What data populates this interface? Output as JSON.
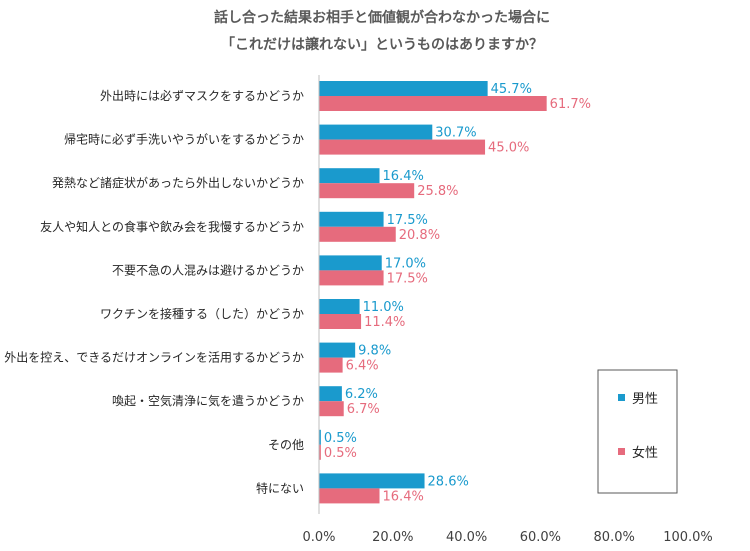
{
  "chart_data": {
    "type": "bar",
    "orientation": "horizontal",
    "title": [
      "話し合った結果お相手と価値観が合わなかった場合に",
      "「これだけは譲れない」というものはありますか？"
    ],
    "categories": [
      "外出時には必ずマスクをするかどうか",
      "帰宅時に必ず手洗いやうがいをするかどうか",
      "発熱など諸症状があったら外出しないかどうか",
      "友人や知人との食事や飲み会を我慢するかどうか",
      "不要不急の人混みは避けるかどうか",
      "ワクチンを接種する（した）かどうか",
      "外出を控え、できるだけオンラインを活用するかどうか",
      "喚起・空気清浄に気を遣うかどうか",
      "その他",
      "特にない"
    ],
    "series": [
      {
        "name": "男性",
        "color": "#1A9ACD",
        "values": [
          45.7,
          30.7,
          16.4,
          17.5,
          17.0,
          11.0,
          9.8,
          6.2,
          0.5,
          28.6
        ],
        "labels": [
          "45.7%",
          "30.7%",
          "16.4%",
          "17.5%",
          "17.0%",
          "11.0%",
          "9.8%",
          "6.2%",
          "0.5%",
          "28.6%"
        ]
      },
      {
        "name": "女性",
        "color": "#E66B7D",
        "values": [
          61.7,
          45.0,
          25.8,
          20.8,
          17.5,
          11.4,
          6.4,
          6.7,
          0.5,
          16.4
        ],
        "labels": [
          "61.7%",
          "45.0%",
          "25.8%",
          "20.8%",
          "17.5%",
          "11.4%",
          "6.4%",
          "6.7%",
          "0.5%",
          "16.4%"
        ]
      }
    ],
    "xlim": [
      0,
      100
    ],
    "xticks": [
      0,
      20,
      40,
      60,
      80,
      100
    ],
    "xtick_labels": [
      "0.0%",
      "20.0%",
      "40.0%",
      "60.0%",
      "80.0%",
      "100.0%"
    ],
    "grid": false,
    "legend_position": "right"
  }
}
